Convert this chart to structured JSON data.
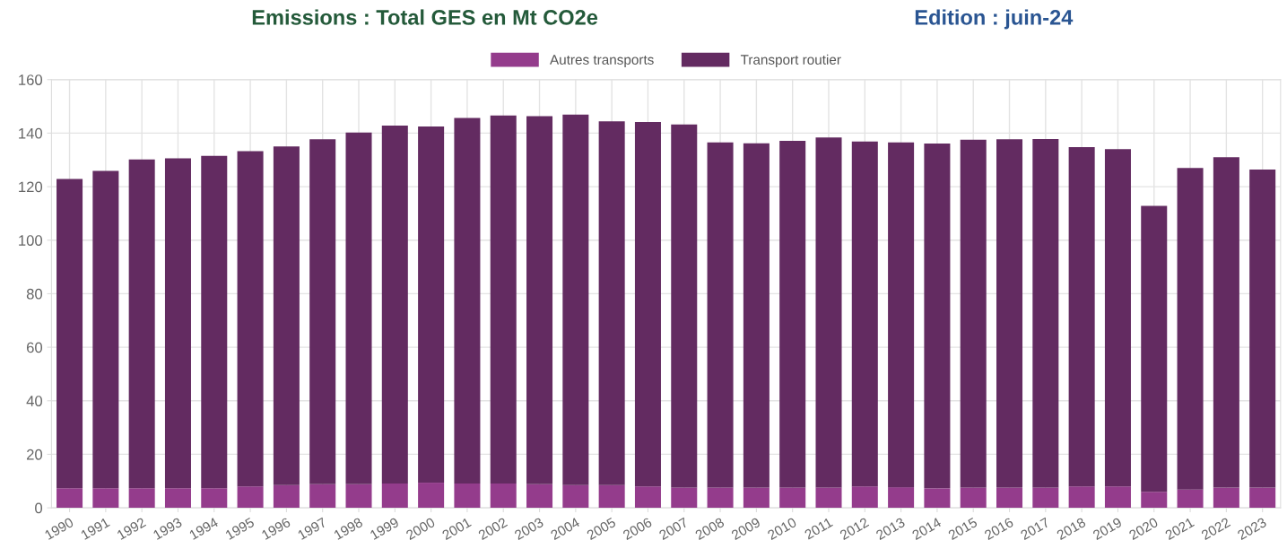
{
  "chart_data": {
    "type": "bar",
    "title": "Emissions : Total GES en Mt CO2e",
    "subtitle": "Edition : juin-24",
    "categories": [
      "1990",
      "1991",
      "1992",
      "1993",
      "1994",
      "1995",
      "1996",
      "1997",
      "1998",
      "1999",
      "2000",
      "2001",
      "2002",
      "2003",
      "2004",
      "2005",
      "2006",
      "2007",
      "2008",
      "2009",
      "2010",
      "2011",
      "2012",
      "2013",
      "2014",
      "2015",
      "2016",
      "2017",
      "2018",
      "2019",
      "2020",
      "2021",
      "2022",
      "2023"
    ],
    "stacked": true,
    "series": [
      {
        "name": "Autres transports",
        "color": "#943c8c",
        "values": [
          7.3,
          7.3,
          7.3,
          7.3,
          7.3,
          8.0,
          8.5,
          8.8,
          8.8,
          9.1,
          9.4,
          9.1,
          9.1,
          8.8,
          8.5,
          8.5,
          8.0,
          7.6,
          7.6,
          7.6,
          7.6,
          7.6,
          8.0,
          7.7,
          7.3,
          7.6,
          7.6,
          7.6,
          8.0,
          8.0,
          6.0,
          6.8,
          7.6,
          7.6
        ]
      },
      {
        "name": "Transport routier",
        "color": "#632b61",
        "values": [
          115.6,
          118.6,
          122.9,
          123.3,
          124.2,
          125.3,
          126.5,
          128.9,
          131.4,
          133.7,
          133.1,
          136.6,
          137.5,
          137.5,
          138.4,
          135.9,
          136.2,
          135.6,
          128.9,
          128.6,
          129.5,
          130.8,
          128.9,
          128.8,
          128.8,
          129.9,
          130.1,
          130.2,
          126.8,
          126.0,
          106.8,
          120.2,
          123.4,
          118.8
        ]
      }
    ],
    "ylim": [
      0,
      160
    ],
    "yticks": [
      0,
      20,
      40,
      60,
      80,
      100,
      120,
      140,
      160
    ],
    "grid": true,
    "legend": "top"
  }
}
